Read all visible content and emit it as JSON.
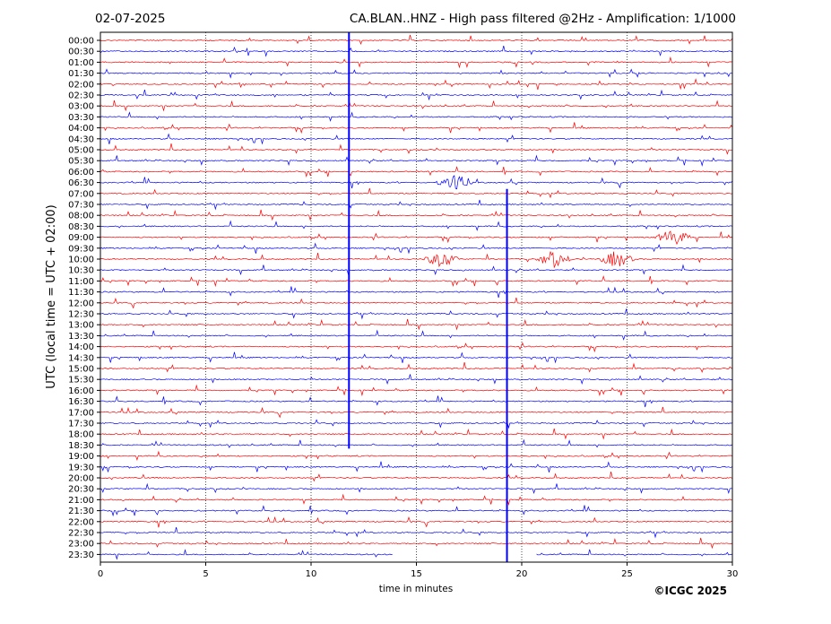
{
  "header": {
    "date": "02-07-2025",
    "station_title": "CA.BLAN..HNZ - High pass filtered @2Hz - Amplification: 1/1000"
  },
  "footer": {
    "copyright": "©ICGC 2025"
  },
  "colors": {
    "red": "#ff0000",
    "blue": "#0000ff",
    "axis": "#000000",
    "grid": "#000000"
  },
  "chart_data": {
    "type": "line",
    "title": "CA.BLAN..HNZ - High pass filtered @2Hz - Amplification: 1/1000",
    "xlabel": "time in minutes",
    "ylabel": "UTC (local time = UTC + 02:00)",
    "xlim": [
      0,
      30
    ],
    "x_ticks": [
      0,
      5,
      10,
      15,
      20,
      25,
      30
    ],
    "grid": "vertical dotted at 5-minute marks",
    "row_labels": [
      "00:00",
      "00:30",
      "01:00",
      "01:30",
      "02:00",
      "02:30",
      "03:00",
      "03:30",
      "04:00",
      "04:30",
      "05:00",
      "05:30",
      "06:00",
      "06:30",
      "07:00",
      "07:30",
      "08:00",
      "08:30",
      "09:00",
      "09:30",
      "10:00",
      "10:30",
      "11:00",
      "11:30",
      "12:00",
      "12:30",
      "13:00",
      "13:30",
      "14:00",
      "14:30",
      "15:00",
      "15:30",
      "16:00",
      "16:30",
      "17:00",
      "17:30",
      "18:00",
      "18:30",
      "19:00",
      "19:30",
      "20:00",
      "20:30",
      "21:00",
      "21:30",
      "22:00",
      "22:30",
      "23:00",
      "23:30"
    ],
    "row_colors": [
      "red",
      "blue"
    ],
    "notable_events": [
      {
        "label": "vertical trace",
        "x_min": 11.8,
        "from_row": "00:00",
        "to_row": "18:30"
      },
      {
        "label": "vertical trace",
        "x_min": 19.3,
        "from_row": "07:00",
        "to_row": "23:30"
      },
      {
        "label": "burst",
        "x_min": 16.2,
        "row": "10:00"
      },
      {
        "label": "burst",
        "x_min": 21.5,
        "row": "10:00"
      },
      {
        "label": "burst",
        "x_min": 24.5,
        "row": "10:00"
      },
      {
        "label": "burst",
        "x_min": 27.2,
        "row": "09:00"
      },
      {
        "label": "burst",
        "x_min": 16.8,
        "row": "06:30"
      }
    ],
    "last_row_gaps": [
      {
        "from": 13.9,
        "to": 20.7
      }
    ]
  }
}
